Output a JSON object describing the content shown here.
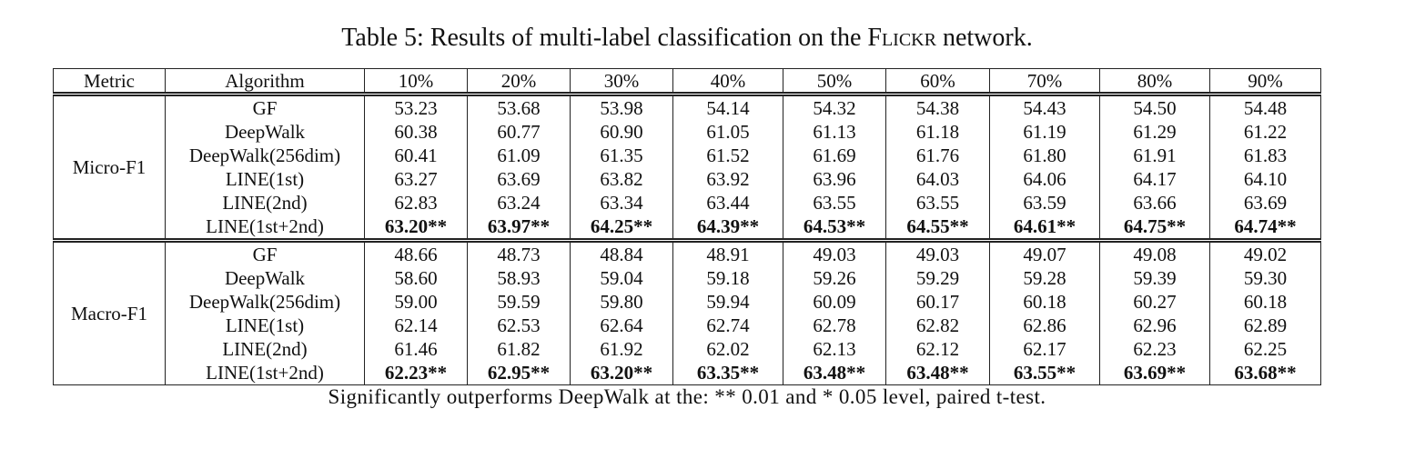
{
  "caption": {
    "label": "Table 5:",
    "text": "Results of multi-label classification on the",
    "dataset": "Flickr",
    "suffix": "network."
  },
  "table": {
    "header": [
      "Metric",
      "Algorithm",
      "10%",
      "20%",
      "30%",
      "40%",
      "50%",
      "60%",
      "70%",
      "80%",
      "90%"
    ],
    "groups": [
      {
        "metric": "Micro-F1",
        "rows": [
          {
            "algorithm": "GF",
            "values": [
              "53.23",
              "53.68",
              "53.98",
              "54.14",
              "54.32",
              "54.38",
              "54.43",
              "54.50",
              "54.48"
            ]
          },
          {
            "algorithm": "DeepWalk",
            "values": [
              "60.38",
              "60.77",
              "60.90",
              "61.05",
              "61.13",
              "61.18",
              "61.19",
              "61.29",
              "61.22"
            ]
          },
          {
            "algorithm": "DeepWalk(256dim)",
            "values": [
              "60.41",
              "61.09",
              "61.35",
              "61.52",
              "61.69",
              "61.76",
              "61.80",
              "61.91",
              "61.83"
            ]
          },
          {
            "algorithm": "LINE(1st)",
            "values": [
              "63.27",
              "63.69",
              "63.82",
              "63.92",
              "63.96",
              "64.03",
              "64.06",
              "64.17",
              "64.10"
            ]
          },
          {
            "algorithm": "LINE(2nd)",
            "values": [
              "62.83",
              "63.24",
              "63.34",
              "63.44",
              "63.55",
              "63.55",
              "63.59",
              "63.66",
              "63.69"
            ]
          },
          {
            "algorithm": "LINE(1st+2nd)",
            "bold": true,
            "values": [
              "63.20**",
              "63.97**",
              "64.25**",
              "64.39**",
              "64.53**",
              "64.55**",
              "64.61**",
              "64.75**",
              "64.74**"
            ]
          }
        ]
      },
      {
        "metric": "Macro-F1",
        "rows": [
          {
            "algorithm": "GF",
            "values": [
              "48.66",
              "48.73",
              "48.84",
              "48.91",
              "49.03",
              "49.03",
              "49.07",
              "49.08",
              "49.02"
            ]
          },
          {
            "algorithm": "DeepWalk",
            "values": [
              "58.60",
              "58.93",
              "59.04",
              "59.18",
              "59.26",
              "59.29",
              "59.28",
              "59.39",
              "59.30"
            ]
          },
          {
            "algorithm": "DeepWalk(256dim)",
            "values": [
              "59.00",
              "59.59",
              "59.80",
              "59.94",
              "60.09",
              "60.17",
              "60.18",
              "60.27",
              "60.18"
            ]
          },
          {
            "algorithm": "LINE(1st)",
            "values": [
              "62.14",
              "62.53",
              "62.64",
              "62.74",
              "62.78",
              "62.82",
              "62.86",
              "62.96",
              "62.89"
            ]
          },
          {
            "algorithm": "LINE(2nd)",
            "values": [
              "61.46",
              "61.82",
              "61.92",
              "62.02",
              "62.13",
              "62.12",
              "62.17",
              "62.23",
              "62.25"
            ]
          },
          {
            "algorithm": "LINE(1st+2nd)",
            "bold": true,
            "values": [
              "62.23**",
              "62.95**",
              "63.20**",
              "63.35**",
              "63.48**",
              "63.48**",
              "63.55**",
              "63.69**",
              "63.68**"
            ]
          }
        ]
      }
    ]
  },
  "footnote": "Significantly outperforms DeepWalk at the: ** 0.01 and * 0.05 level, paired t-test."
}
